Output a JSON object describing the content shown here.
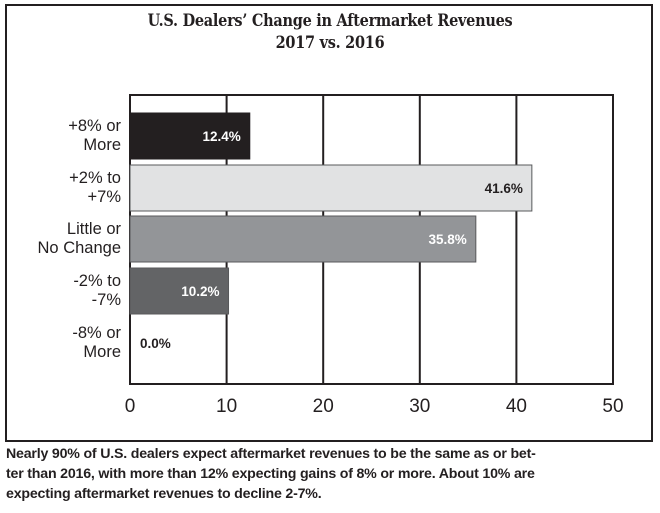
{
  "chart_data": {
    "type": "bar",
    "orientation": "horizontal",
    "title": "U.S. Dealers’ Change in Aftermarket Revenues",
    "subtitle": "2017 vs. 2016",
    "categories": [
      [
        "+8% or",
        "More"
      ],
      [
        "+2% to",
        "+7%"
      ],
      [
        "Little or",
        "No Change"
      ],
      [
        "-2% to",
        "-7%"
      ],
      [
        "-8% or",
        "More"
      ]
    ],
    "values": [
      12.4,
      41.6,
      35.8,
      10.2,
      0.0
    ],
    "value_labels": [
      "12.4%",
      "41.6%",
      "35.8%",
      "10.2%",
      "0.0%"
    ],
    "bar_colors": [
      "#231f20",
      "#e1e2e3",
      "#939598",
      "#636466",
      "#ffffff"
    ],
    "label_colors": [
      "#ffffff",
      "#231f20",
      "#ffffff",
      "#ffffff",
      "#231f20"
    ],
    "xlim": [
      0,
      50
    ],
    "xticks": [
      0,
      10,
      20,
      30,
      40,
      50
    ],
    "xtick_labels": [
      "0",
      "10",
      "20",
      "30",
      "40",
      "50"
    ],
    "xlabel": "",
    "ylabel": "",
    "grid": true,
    "legend": "none"
  },
  "caption": "Nearly 90% of U.S. dealers expect aftermarket revenues to be the same as or bet-ter than 2016, with more than 12% expecting gains of 8% or more. About 10% are expecting aftermarket revenues to decline 2-7%.",
  "caption_lines": [
    "Nearly 90% of U.S. dealers expect aftermarket revenues to be the same as or bet-",
    "ter than 2016, with more than 12% expecting gains of 8% or more. About 10% are",
    "expecting aftermarket revenues to decline 2-7%."
  ]
}
